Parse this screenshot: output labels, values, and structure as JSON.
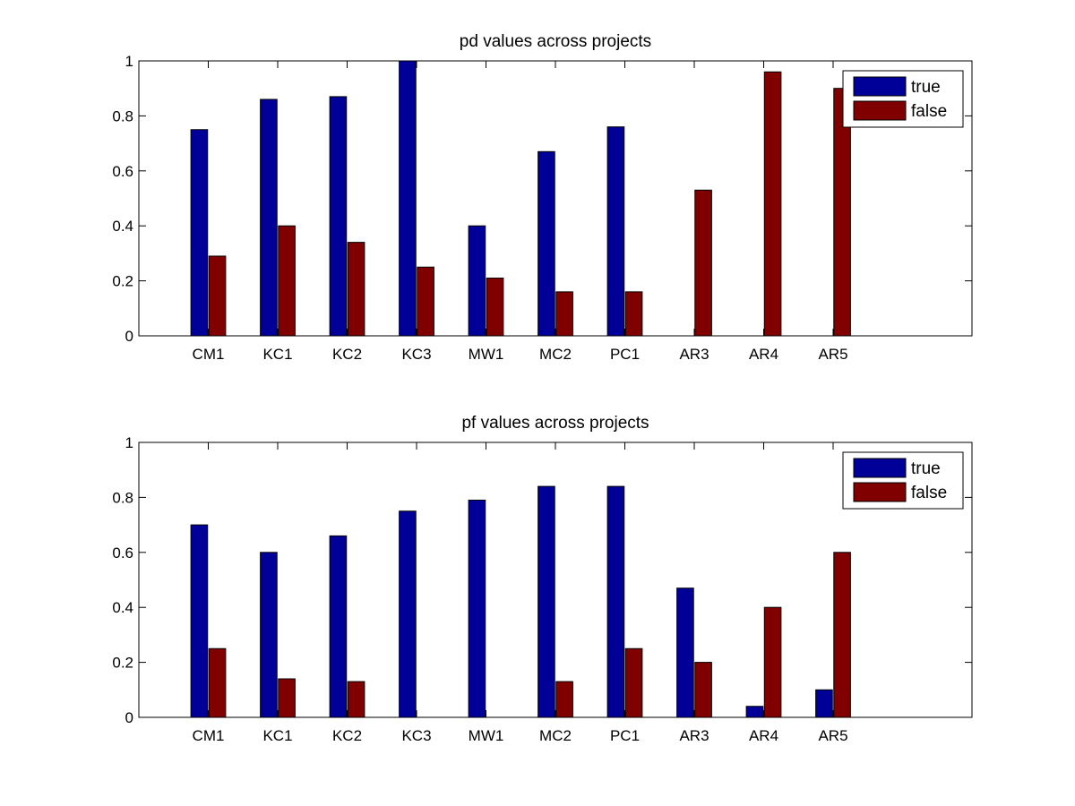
{
  "chart_data": [
    {
      "type": "bar",
      "title": "pd values across projects",
      "xlabel": "",
      "ylabel": "",
      "categories": [
        "CM1",
        "KC1",
        "KC2",
        "KC3",
        "MW1",
        "MC2",
        "PC1",
        "AR3",
        "AR4",
        "AR5"
      ],
      "series": [
        {
          "name": "true",
          "color": "#000099",
          "values": [
            0.75,
            0.86,
            0.87,
            1.0,
            0.4,
            0.67,
            0.76,
            0.0,
            0.0,
            0.0
          ]
        },
        {
          "name": "false",
          "color": "#800000",
          "values": [
            0.29,
            0.4,
            0.34,
            0.25,
            0.21,
            0.16,
            0.16,
            0.53,
            0.96,
            0.9
          ]
        }
      ],
      "xlim": [
        0,
        12
      ],
      "ylim": [
        0,
        1
      ],
      "yticks": [
        "0",
        "0.2",
        "0.4",
        "0.6",
        "0.8",
        "1"
      ],
      "legend_position": "top-right",
      "grid": false
    },
    {
      "type": "bar",
      "title": "pf values across projects",
      "xlabel": "",
      "ylabel": "",
      "categories": [
        "CM1",
        "KC1",
        "KC2",
        "KC3",
        "MW1",
        "MC2",
        "PC1",
        "AR3",
        "AR4",
        "AR5"
      ],
      "series": [
        {
          "name": "true",
          "color": "#000099",
          "values": [
            0.7,
            0.6,
            0.66,
            0.75,
            0.79,
            0.84,
            0.84,
            0.47,
            0.04,
            0.1
          ]
        },
        {
          "name": "false",
          "color": "#800000",
          "values": [
            0.25,
            0.14,
            0.13,
            0.0,
            0.0,
            0.13,
            0.25,
            0.2,
            0.4,
            0.6
          ]
        }
      ],
      "xlim": [
        0,
        12
      ],
      "ylim": [
        0,
        1
      ],
      "yticks": [
        "0",
        "0.2",
        "0.4",
        "0.6",
        "0.8",
        "1"
      ],
      "legend_position": "top-right",
      "grid": false
    }
  ]
}
